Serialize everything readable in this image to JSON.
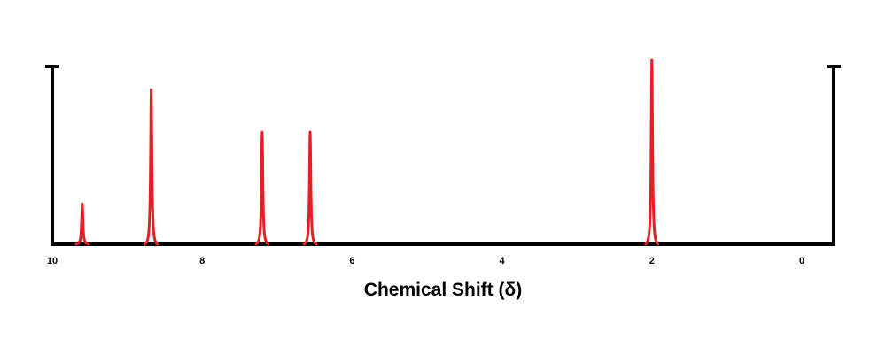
{
  "chart_data": {
    "type": "line",
    "title": "",
    "xlabel": "Chemical Shift (δ)",
    "ylabel": "",
    "x_reversed": true,
    "xlim": [
      10,
      -0.4
    ],
    "x_ticks": [
      "10",
      "8",
      "6",
      "4",
      "2",
      "0"
    ],
    "ylim": [
      0,
      1
    ],
    "grid": false,
    "legend": "none",
    "series": [
      {
        "peaks": [
          {
            "shift": 9.6,
            "intensity": 0.22
          },
          {
            "shift": 8.68,
            "intensity": 0.84
          },
          {
            "shift": 7.2,
            "intensity": 0.61
          },
          {
            "shift": 6.56,
            "intensity": 0.61
          },
          {
            "shift": 2.0,
            "intensity": 1.0
          }
        ]
      }
    ]
  },
  "colors": {
    "peak": "#e41f26",
    "axis": "#000000"
  }
}
